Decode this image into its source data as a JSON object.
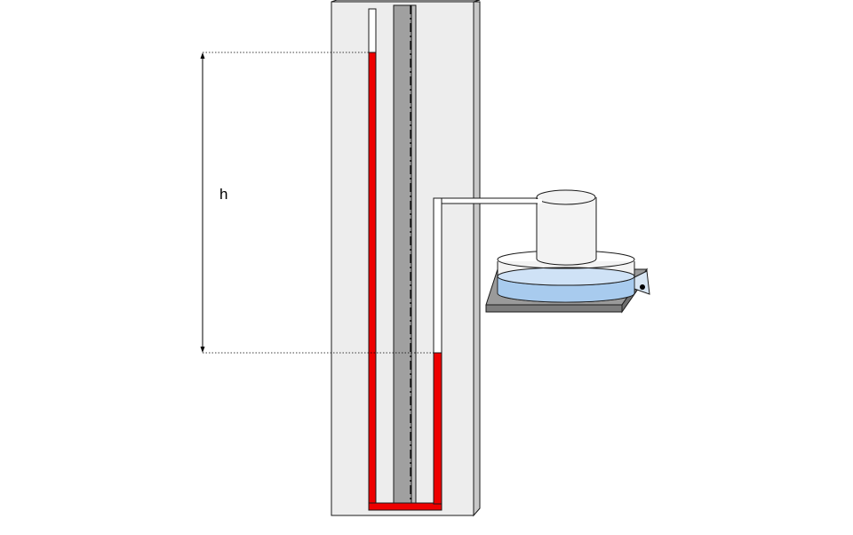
{
  "labels": {
    "height": "h"
  },
  "colors": {
    "board_front": "#ededed",
    "board_side": "#c8c8c8",
    "center_scale": "#a0a0a0",
    "fluid": "#ee0000",
    "water": "#a8cbee",
    "water_top": "#cfe2f6",
    "platform": "#9a9a9a",
    "platform_dark": "#7d7d7d",
    "outline": "#1a1a1a",
    "glass": "#f3f3f3"
  }
}
